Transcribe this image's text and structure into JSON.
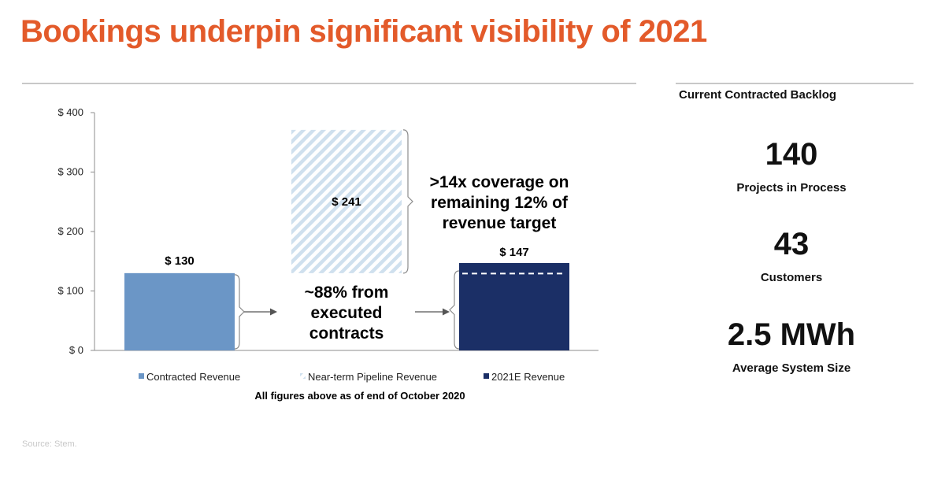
{
  "title": "Bookings underpin significant visibility of 2021",
  "colors": {
    "accent": "#e35a2a",
    "contracted": "#6b96c6",
    "pipeline_stripe": "#cfe0ee",
    "revenue_2021e": "#1b2f66"
  },
  "chart_data": {
    "type": "bar",
    "categories": [
      "Contracted Revenue",
      "Near-term Pipeline Revenue",
      "2021E Revenue"
    ],
    "values": [
      130,
      241,
      147
    ],
    "data_labels": [
      "$ 130",
      "$ 241",
      "$ 147"
    ],
    "stacked_base": [
      0,
      130,
      0
    ],
    "ylim": [
      0,
      400
    ],
    "yticks": [
      0,
      100,
      200,
      300,
      400
    ],
    "ytick_labels": [
      "$ 0",
      "$ 100",
      "$ 200",
      "$ 300",
      "$ 400"
    ],
    "contracted_share_of_2021e": 0.88,
    "grid": false,
    "legend_position": "bottom",
    "legend": [
      "Contracted Revenue",
      "Near-term Pipeline Revenue",
      "2021E Revenue"
    ],
    "annotations": {
      "executed": [
        "~88% from",
        "executed",
        "contracts"
      ],
      "coverage": [
        ">14x coverage on",
        "remaining 12% of",
        "revenue target"
      ]
    },
    "footnote": "All figures above as of end of October 2020"
  },
  "backlog": {
    "heading": "Current Contracted Backlog",
    "stats": [
      {
        "value": "140",
        "label": "Projects in Process"
      },
      {
        "value": "43",
        "label": "Customers"
      },
      {
        "value": "2.5 MWh",
        "label": "Average System Size"
      }
    ]
  },
  "source": "Source: Stem."
}
